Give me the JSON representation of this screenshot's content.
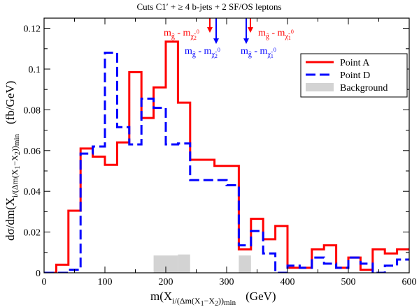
{
  "chart_data": {
    "type": "line",
    "title": "Cuts C1′ + ≥ 4 b-jets + 2 SF/OS leptons",
    "xlabel": {
      "main": "m(X",
      "sub1": "i",
      "sub2": "/(Δm(X",
      "sub3": "1",
      "sub4": "−X",
      "sub5": "2",
      "sub6": "))",
      "sub7": "min",
      "unit": "(GeV)"
    },
    "ylabel": {
      "main": "dσ/dm(X",
      "sub1": "i",
      "sub2": "/(Δm(X",
      "sub3": "1",
      "sub4": "−X",
      "sub5": "2",
      "sub6": "))",
      "sub7": "min",
      "unit": "(fb/GeV)"
    },
    "xlim": [
      0,
      600
    ],
    "ylim": [
      0,
      0.125
    ],
    "xticks": [
      0,
      100,
      200,
      300,
      400,
      500,
      600
    ],
    "yticks": [
      0,
      0.02,
      0.04,
      0.06,
      0.08,
      0.1,
      0.12
    ],
    "xtick_labels": [
      "0",
      "100",
      "200",
      "300",
      "400",
      "500",
      "600"
    ],
    "ytick_labels": [
      "0",
      "0.02",
      "0.04",
      "0.06",
      "0.08",
      "0.1",
      "0.12"
    ],
    "bin_width": 20,
    "bin_edges_start": 0,
    "series": [
      {
        "name": "Point A",
        "color": "#ff0000",
        "style": "solid-step",
        "values": [
          0,
          0.004,
          0.0305,
          0.061,
          0.057,
          0.053,
          0.064,
          0.0985,
          0.076,
          0.091,
          0.1135,
          0.0835,
          0.0555,
          0.0555,
          0.0525,
          0.0525,
          0.0115,
          0.0265,
          0.0165,
          0.023,
          0.0025,
          0.0025,
          0.0115,
          0.0135,
          0.0025,
          0.0075,
          0.0015,
          0.0115,
          0.0095,
          0.0115
        ]
      },
      {
        "name": "Point D",
        "color": "#0000ff",
        "style": "dashed-step",
        "values": [
          0,
          0,
          0.0015,
          0.0585,
          0.062,
          0.108,
          0.0715,
          0.063,
          0.0855,
          0.081,
          0.063,
          0.0635,
          0.0455,
          0.0455,
          0.0455,
          0.043,
          0.0135,
          0.0205,
          0.0095,
          0.0,
          0.0035,
          0.0025,
          0.0075,
          0.0045,
          0.0025,
          0.0075,
          0.0045,
          0.0,
          0.0035,
          0.0065
        ]
      },
      {
        "name": "Background",
        "color": "#d3d3d3",
        "style": "filled-bars",
        "bins": [
          {
            "x0": 180,
            "x1": 220,
            "value": 0.0085
          },
          {
            "x0": 220,
            "x1": 240,
            "value": 0.009
          },
          {
            "x0": 320,
            "x1": 340,
            "value": 0.0085
          }
        ]
      }
    ],
    "legend": {
      "placement": "top-right",
      "entries": [
        {
          "label": "Point A",
          "color": "#ff0000",
          "style": "solid"
        },
        {
          "label": "Point D",
          "color": "#0000ff",
          "style": "dashed"
        },
        {
          "label": "Background",
          "color": "#d3d3d3",
          "style": "filled"
        }
      ]
    },
    "annotations": [
      {
        "id": "red-left",
        "color": "#ff0000",
        "x": 270,
        "base": "m",
        "base_sub": "g̃",
        "mid": " - m",
        "sub": "χ̃",
        "sub_sub": "2",
        "sup": "0"
      },
      {
        "id": "blue-left",
        "color": "#0000ff",
        "x": 283,
        "base": "m",
        "base_sub": "g̃",
        "mid": " - m",
        "sub": "χ̃",
        "sub_sub": "2",
        "sup": "0"
      },
      {
        "id": "blue-right",
        "color": "#0000ff",
        "x": 335,
        "base": "m",
        "base_sub": "g̃",
        "mid": " - m",
        "sub": "χ̃",
        "sub_sub": "1",
        "sup": "0"
      },
      {
        "id": "red-right",
        "color": "#ff0000",
        "x": 342,
        "base": "m",
        "base_sub": "g̃",
        "mid": " - m",
        "sub": "χ̃",
        "sub_sub": "1",
        "sup": "0"
      }
    ]
  }
}
